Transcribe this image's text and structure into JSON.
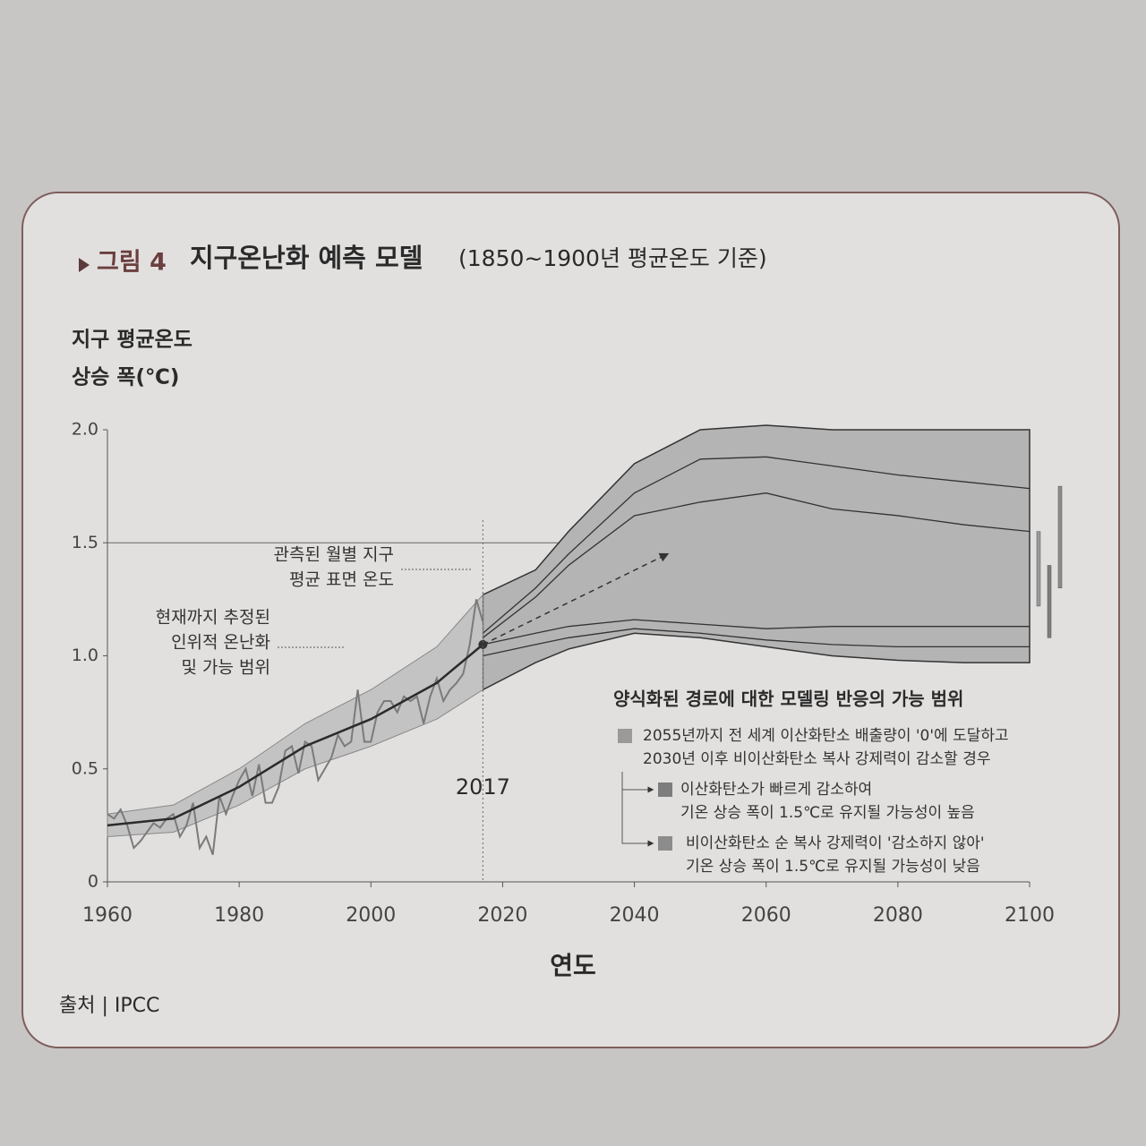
{
  "chart_data": {
    "type": "projection",
    "title_label": "그림 4",
    "title": "지구온난화 예측 모델",
    "subtitle": "(1850~1900년 평균온도 기준)",
    "y_label": [
      "지구 평균온도",
      "상승 폭(℃)"
    ],
    "x_label": "연도",
    "source": "출처 | IPCC",
    "xlim": [
      1960,
      2100
    ],
    "ylim": [
      0,
      2
    ],
    "xticks": [
      1960,
      1980,
      2000,
      2020,
      2040,
      2060,
      2080,
      2100
    ],
    "yticks": [
      0,
      0.5,
      {
        "value": 1,
        "label": "1.0"
      },
      1.5,
      {
        "value": 2,
        "label": "2.0"
      }
    ],
    "reference_line": 1.5,
    "marker_year": 2017,
    "observed": {
      "color": "#7a7a7a",
      "x": [
        1960,
        1961,
        1962,
        1963,
        1964,
        1965,
        1966,
        1967,
        1968,
        1969,
        1970,
        1971,
        1972,
        1973,
        1974,
        1975,
        1976,
        1977,
        1978,
        1979,
        1980,
        1981,
        1982,
        1983,
        1984,
        1985,
        1986,
        1987,
        1988,
        1989,
        1990,
        1991,
        1992,
        1993,
        1994,
        1995,
        1996,
        1997,
        1998,
        1999,
        2000,
        2001,
        2002,
        2003,
        2004,
        2005,
        2006,
        2007,
        2008,
        2009,
        2010,
        2011,
        2012,
        2013,
        2014,
        2015,
        2016,
        2017
      ],
      "values": [
        0.3,
        0.28,
        0.32,
        0.25,
        0.15,
        0.18,
        0.22,
        0.26,
        0.24,
        0.28,
        0.3,
        0.2,
        0.25,
        0.35,
        0.15,
        0.2,
        0.12,
        0.38,
        0.3,
        0.38,
        0.45,
        0.5,
        0.38,
        0.52,
        0.35,
        0.35,
        0.42,
        0.58,
        0.6,
        0.48,
        0.62,
        0.6,
        0.45,
        0.5,
        0.55,
        0.65,
        0.6,
        0.62,
        0.85,
        0.62,
        0.62,
        0.75,
        0.8,
        0.8,
        0.75,
        0.82,
        0.8,
        0.82,
        0.7,
        0.82,
        0.9,
        0.8,
        0.85,
        0.88,
        0.92,
        1.05,
        1.25,
        1.15
      ]
    },
    "estimated": {
      "color": "#2b2b2b",
      "band_color": "#c3c3c3",
      "x": [
        1960,
        1970,
        1980,
        1990,
        2000,
        2010,
        2017
      ],
      "values": [
        0.25,
        0.28,
        0.42,
        0.6,
        0.72,
        0.88,
        1.05
      ],
      "lower": [
        0.2,
        0.22,
        0.34,
        0.5,
        0.6,
        0.72,
        0.85
      ],
      "upper": [
        0.3,
        0.34,
        0.5,
        0.7,
        0.85,
        1.04,
        1.27
      ]
    },
    "projection": {
      "color": "#b4b4b4",
      "x": [
        2017,
        2025,
        2030,
        2040,
        2050,
        2060,
        2070,
        2080,
        2090,
        2100
      ],
      "lower": [
        0.85,
        0.97,
        1.03,
        1.1,
        1.08,
        1.04,
        1.0,
        0.98,
        0.97,
        0.97
      ],
      "upper": [
        1.27,
        1.38,
        1.55,
        1.85,
        2.0,
        2.02,
        2.0,
        2.0,
        2.0,
        2.0
      ],
      "curves": [
        {
          "values": [
            1.1,
            1.3,
            1.45,
            1.72,
            1.87,
            1.88,
            1.84,
            1.8,
            1.77,
            1.74
          ]
        },
        {
          "values": [
            1.08,
            1.26,
            1.4,
            1.62,
            1.68,
            1.72,
            1.65,
            1.62,
            1.58,
            1.55
          ]
        },
        {
          "values": [
            1.05,
            1.1,
            1.13,
            1.16,
            1.14,
            1.12,
            1.13,
            1.13,
            1.13,
            1.13
          ]
        },
        {
          "values": [
            1.0,
            1.05,
            1.08,
            1.12,
            1.1,
            1.07,
            1.05,
            1.04,
            1.04,
            1.04
          ]
        }
      ]
    },
    "arrow": {
      "x": [
        2017,
        2045
      ],
      "y": [
        1.05,
        1.45
      ]
    },
    "annotations": [
      {
        "lines": [
          "관측된 월별 지구",
          "평균 표면 온도"
        ]
      },
      {
        "lines": [
          "현재까지 추정된",
          "인위적 온난화",
          "및 가능 범위"
        ]
      }
    ],
    "legend_title": "양식화된 경로에 대한 모델링 반응의 가능 범위",
    "legend": [
      {
        "lines": [
          "2055년까지 전 세계 이산화탄소 배출량이 '0'에 도달하고",
          "2030년 이후 비이산화탄소 복사 강제력이 감소할 경우"
        ],
        "color": "#9a9a9a",
        "lower": 1.22,
        "upper": 1.55
      },
      {
        "lines": [
          "이산화탄소가 빠르게 감소하여",
          "기온 상승 폭이 1.5℃로 유지될 가능성이 높음"
        ],
        "color": "#7d7d7d",
        "lower": 1.08,
        "upper": 1.4
      },
      {
        "lines": [
          "비이산화탄소 순 복사 강제력이 '감소하지 않아'",
          "기온 상승 폭이 1.5℃로 유지될 가능성이 낮음"
        ],
        "color": "#8c8c8c",
        "lower": 1.3,
        "upper": 1.75
      }
    ]
  }
}
